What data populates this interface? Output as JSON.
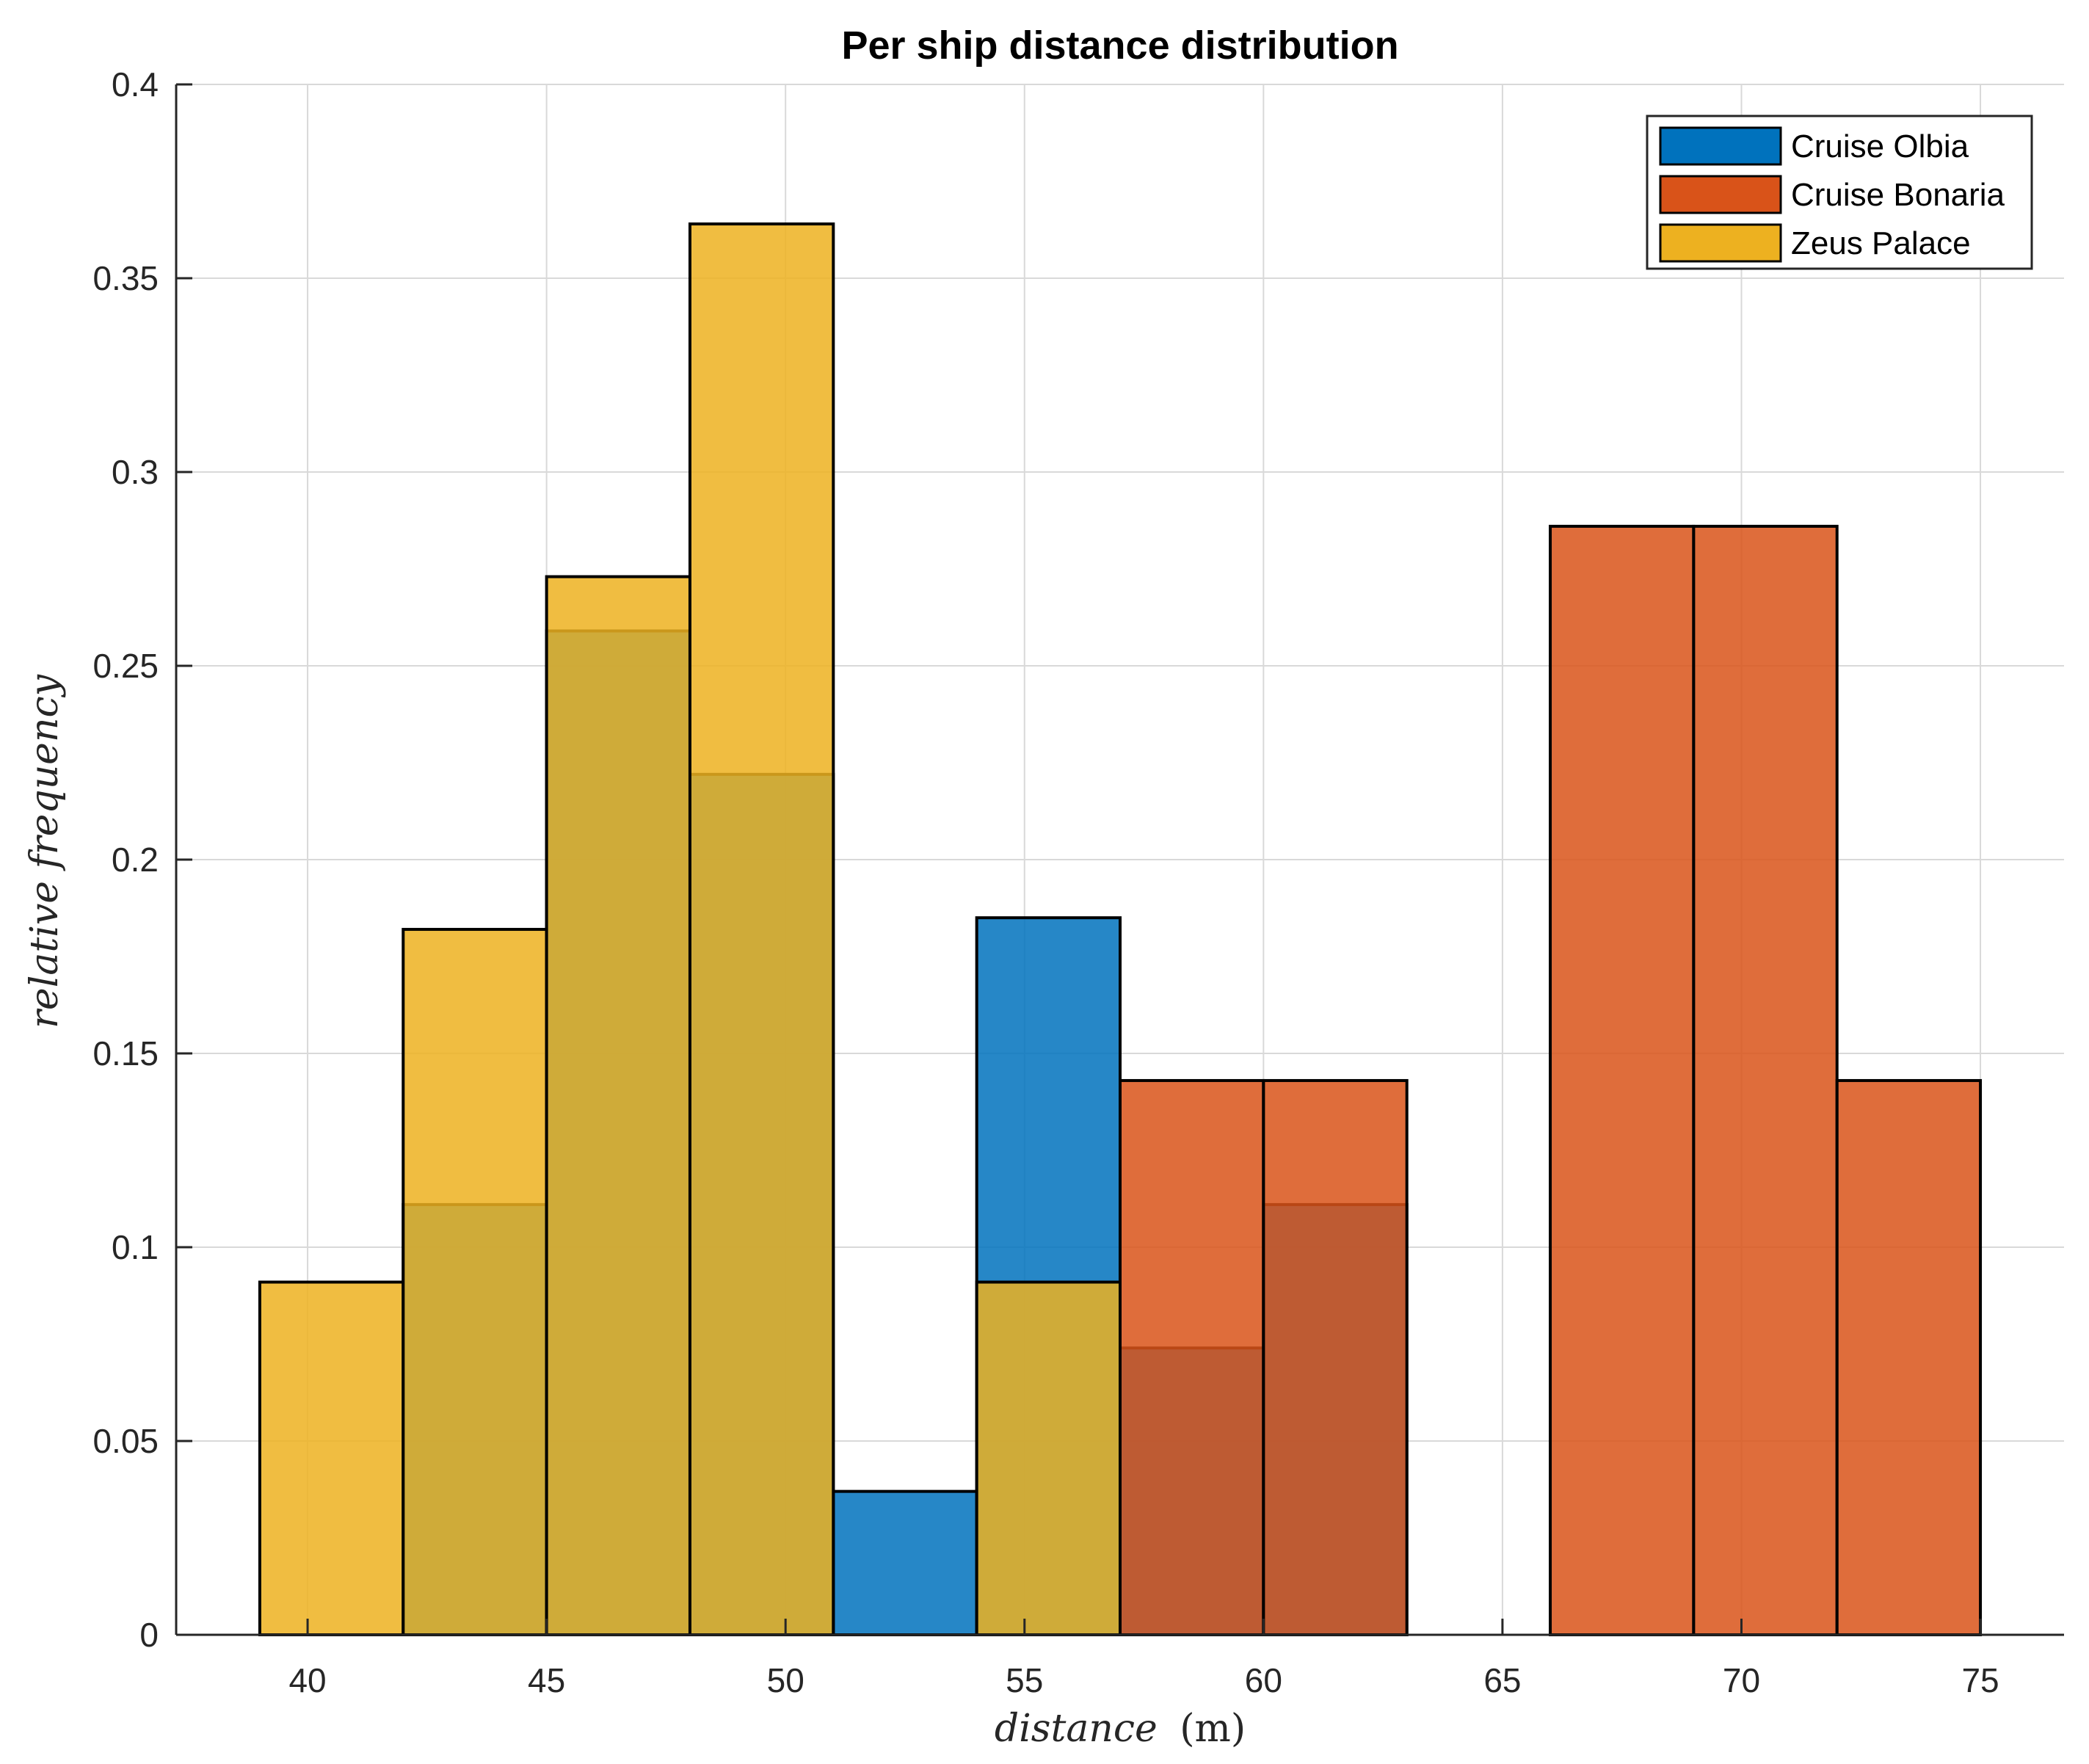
{
  "chart_data": {
    "type": "bar",
    "title": "Per ship distance distribution",
    "xlabel": "distance",
    "xlabel_unit": "(m)",
    "ylabel": "relative frequency",
    "xlim": [
      37.25,
      76.75
    ],
    "ylim": [
      0,
      0.4
    ],
    "xticks": [
      40,
      45,
      50,
      55,
      60,
      65,
      70,
      75
    ],
    "yticks": [
      0,
      0.05,
      0.1,
      0.15,
      0.2,
      0.25,
      0.3,
      0.35,
      0.4
    ],
    "ytick_labels": [
      "0",
      "0.05",
      "0.1",
      "0.15",
      "0.2",
      "0.25",
      "0.3",
      "0.35",
      "0.4"
    ],
    "bin_width": 3,
    "grid": true,
    "legend_position": "top-right",
    "series": [
      {
        "name": "Cruise Olbia",
        "color": "#0072BD",
        "bins": [
          {
            "x": 42,
            "value": 0.111
          },
          {
            "x": 45,
            "value": 0.259
          },
          {
            "x": 48,
            "value": 0.222
          },
          {
            "x": 51,
            "value": 0.037
          },
          {
            "x": 54,
            "value": 0.185
          },
          {
            "x": 57,
            "value": 0.074
          },
          {
            "x": 60,
            "value": 0.111
          }
        ]
      },
      {
        "name": "Cruise Bonaria",
        "color": "#D95319",
        "bins": [
          {
            "x": 57,
            "value": 0.143
          },
          {
            "x": 60,
            "value": 0.143
          },
          {
            "x": 66,
            "value": 0.286
          },
          {
            "x": 69,
            "value": 0.286
          },
          {
            "x": 72,
            "value": 0.143
          }
        ]
      },
      {
        "name": "Zeus Palace",
        "color": "#EDB120",
        "bins": [
          {
            "x": 39,
            "value": 0.091
          },
          {
            "x": 42,
            "value": 0.182
          },
          {
            "x": 45,
            "value": 0.273
          },
          {
            "x": 48,
            "value": 0.364
          },
          {
            "x": 54,
            "value": 0.091
          }
        ]
      }
    ]
  }
}
